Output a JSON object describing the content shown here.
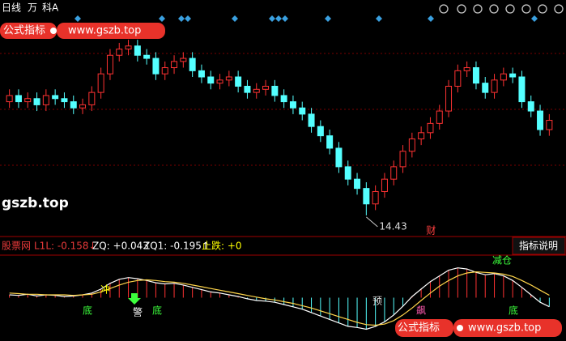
{
  "ui": {
    "toolbar": [
      "日线",
      "万",
      "科A"
    ],
    "watermark_top": [
      "公式指标",
      "www.gszb.top"
    ],
    "watermark_side": "gszb.top",
    "watermark_bottom": [
      "公式指标",
      "www.gszb.top"
    ],
    "indicator_header": [
      "股票网",
      "L1L: -0.158↓",
      "ZQ: +0.043",
      "ZQ1: -0.195↑",
      "止跌: +0"
    ],
    "help_button": "指标说明",
    "signals": [
      "冲",
      "底",
      "警",
      "底",
      "预",
      "飙",
      "减仓",
      "底"
    ]
  },
  "chart_data": [
    {
      "type": "candlestick",
      "up_color": "#ff3232",
      "down_color": "#54ffff",
      "grid_color": "#7a0000",
      "ylim": [
        13.8,
        20.6
      ],
      "open": [
        18.1,
        18.3,
        18.1,
        18.2,
        18.0,
        18.3,
        18.2,
        18.1,
        17.9,
        18.0,
        18.4,
        19.0,
        19.6,
        19.8,
        19.9,
        19.6,
        19.5,
        19.0,
        19.2,
        19.4,
        19.5,
        19.1,
        18.9,
        18.7,
        18.8,
        18.9,
        18.6,
        18.4,
        18.5,
        18.6,
        18.3,
        18.1,
        17.9,
        17.7,
        17.3,
        17.0,
        16.6,
        16.0,
        15.6,
        15.3,
        14.8,
        15.2,
        15.6,
        16.0,
        16.5,
        16.9,
        17.1,
        17.4,
        17.8,
        18.6,
        19.1,
        19.2,
        18.7,
        18.4,
        18.8,
        19.0,
        18.9,
        18.1,
        17.8,
        17.2
      ],
      "high": [
        18.5,
        18.5,
        18.4,
        18.4,
        18.5,
        18.5,
        18.4,
        18.3,
        18.2,
        18.6,
        19.2,
        19.8,
        20.0,
        20.1,
        20.1,
        19.8,
        19.7,
        19.4,
        19.6,
        19.7,
        19.7,
        19.3,
        19.1,
        19.0,
        19.1,
        19.1,
        18.8,
        18.7,
        18.8,
        18.8,
        18.5,
        18.3,
        18.1,
        17.9,
        17.5,
        17.2,
        16.8,
        16.2,
        15.8,
        15.5,
        15.4,
        15.8,
        16.2,
        16.7,
        17.1,
        17.3,
        17.6,
        18.0,
        18.8,
        19.3,
        19.4,
        19.4,
        18.9,
        19.0,
        19.2,
        19.2,
        19.1,
        18.3,
        18.0,
        17.7
      ],
      "low": [
        17.9,
        17.9,
        17.9,
        17.8,
        17.8,
        18.0,
        17.9,
        17.7,
        17.7,
        17.8,
        18.2,
        18.8,
        19.4,
        19.6,
        19.4,
        19.3,
        18.8,
        18.8,
        19.0,
        19.2,
        18.9,
        18.7,
        18.5,
        18.5,
        18.6,
        18.4,
        18.2,
        18.2,
        18.3,
        18.1,
        17.9,
        17.7,
        17.5,
        17.1,
        16.8,
        16.4,
        15.8,
        15.4,
        15.1,
        14.43,
        14.6,
        15.0,
        15.4,
        15.8,
        16.3,
        16.7,
        16.9,
        17.2,
        17.6,
        18.4,
        18.9,
        18.5,
        18.2,
        18.2,
        18.6,
        18.7,
        17.9,
        17.6,
        17.0,
        17.0
      ],
      "close": [
        18.3,
        18.1,
        18.2,
        18.0,
        18.3,
        18.2,
        18.1,
        17.9,
        18.0,
        18.4,
        19.0,
        19.6,
        19.8,
        19.9,
        19.6,
        19.5,
        19.0,
        19.2,
        19.4,
        19.5,
        19.1,
        18.9,
        18.7,
        18.8,
        18.9,
        18.6,
        18.4,
        18.5,
        18.6,
        18.3,
        18.1,
        17.9,
        17.7,
        17.3,
        17.0,
        16.6,
        16.0,
        15.6,
        15.3,
        14.8,
        15.2,
        15.6,
        16.0,
        16.5,
        16.9,
        17.1,
        17.4,
        17.8,
        18.6,
        19.1,
        19.2,
        18.7,
        18.4,
        18.8,
        19.0,
        18.9,
        18.1,
        17.8,
        17.2,
        17.5
      ],
      "low_label": 14.43,
      "marker": "财"
    },
    {
      "type": "line",
      "ylim": [
        -0.6,
        0.6
      ],
      "up_color": "#ff3232",
      "down_color": "#54ffff",
      "series": [
        {
          "name": "L1L",
          "color": "#ffffff",
          "values": [
            0.05,
            0.04,
            0.06,
            0.03,
            0.05,
            0.04,
            0.02,
            0.03,
            0.05,
            0.08,
            0.15,
            0.25,
            0.32,
            0.35,
            0.33,
            0.3,
            0.26,
            0.24,
            0.25,
            0.22,
            0.18,
            0.14,
            0.1,
            0.08,
            0.05,
            0.02,
            -0.02,
            -0.05,
            -0.06,
            -0.08,
            -0.12,
            -0.16,
            -0.2,
            -0.26,
            -0.32,
            -0.38,
            -0.44,
            -0.5,
            -0.52,
            -0.55,
            -0.5,
            -0.42,
            -0.3,
            -0.15,
            0.02,
            0.15,
            0.28,
            0.38,
            0.48,
            0.52,
            0.5,
            0.44,
            0.4,
            0.42,
            0.38,
            0.3,
            0.18,
            0.05,
            -0.08,
            -0.158
          ]
        },
        {
          "name": "ZQ",
          "color": "#ffd54a",
          "values": [
            0.08,
            0.07,
            0.06,
            0.06,
            0.05,
            0.05,
            0.05,
            0.04,
            0.05,
            0.06,
            0.1,
            0.16,
            0.22,
            0.27,
            0.3,
            0.31,
            0.3,
            0.28,
            0.27,
            0.25,
            0.22,
            0.19,
            0.16,
            0.13,
            0.1,
            0.07,
            0.04,
            0.01,
            -0.02,
            -0.04,
            -0.07,
            -0.1,
            -0.14,
            -0.18,
            -0.23,
            -0.28,
            -0.33,
            -0.38,
            -0.43,
            -0.47,
            -0.48,
            -0.46,
            -0.4,
            -0.3,
            -0.18,
            -0.05,
            0.08,
            0.2,
            0.3,
            0.38,
            0.43,
            0.45,
            0.44,
            0.43,
            0.41,
            0.37,
            0.3,
            0.22,
            0.13,
            0.043
          ]
        }
      ]
    }
  ]
}
